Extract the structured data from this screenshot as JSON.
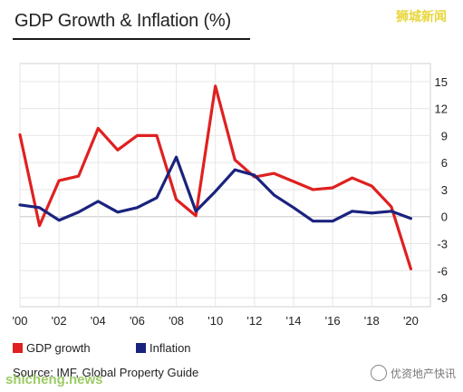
{
  "title": "GDP Growth & Inflation (%)",
  "watermark_top": "狮城新闻",
  "watermark_bottom_left": "shicheng.news",
  "watermark_bottom_right": "优资地产快讯",
  "source": "Source: IMF, Global Property Guide",
  "legend": {
    "gdp": "GDP growth",
    "inflation": "Inflation"
  },
  "colors": {
    "gdp": "#e02020",
    "inflation": "#1a237e",
    "grid": "#e6e6e6"
  },
  "chart_data": {
    "type": "line",
    "title": "GDP Growth & Inflation (%)",
    "x": [
      2000,
      2001,
      2002,
      2003,
      2004,
      2005,
      2006,
      2007,
      2008,
      2009,
      2010,
      2011,
      2012,
      2013,
      2014,
      2015,
      2016,
      2017,
      2018,
      2019,
      2020
    ],
    "xtick_labels": [
      "'00",
      "'02",
      "'04",
      "'06",
      "'08",
      "'10",
      "'12",
      "'14",
      "'16",
      "'18",
      "'20"
    ],
    "xticks": [
      2000,
      2002,
      2004,
      2006,
      2008,
      2010,
      2012,
      2014,
      2016,
      2018,
      2020
    ],
    "yticks": [
      15,
      12,
      9,
      6,
      3,
      0,
      -3,
      -6,
      -9
    ],
    "ylim": [
      -10,
      17
    ],
    "xlim": [
      2000,
      2021
    ],
    "grid": true,
    "series": [
      {
        "name": "GDP growth",
        "values": [
          9.1,
          -1.0,
          4.0,
          4.5,
          9.8,
          7.4,
          9.0,
          9.0,
          1.9,
          0.1,
          14.5,
          6.3,
          4.4,
          4.8,
          3.9,
          3.0,
          3.2,
          4.3,
          3.4,
          1.1,
          -5.8
        ]
      },
      {
        "name": "Inflation",
        "values": [
          1.3,
          1.0,
          -0.4,
          0.5,
          1.7,
          0.5,
          1.0,
          2.1,
          6.6,
          0.6,
          2.8,
          5.2,
          4.6,
          2.4,
          1.0,
          -0.5,
          -0.5,
          0.6,
          0.4,
          0.6,
          -0.2
        ]
      }
    ]
  }
}
